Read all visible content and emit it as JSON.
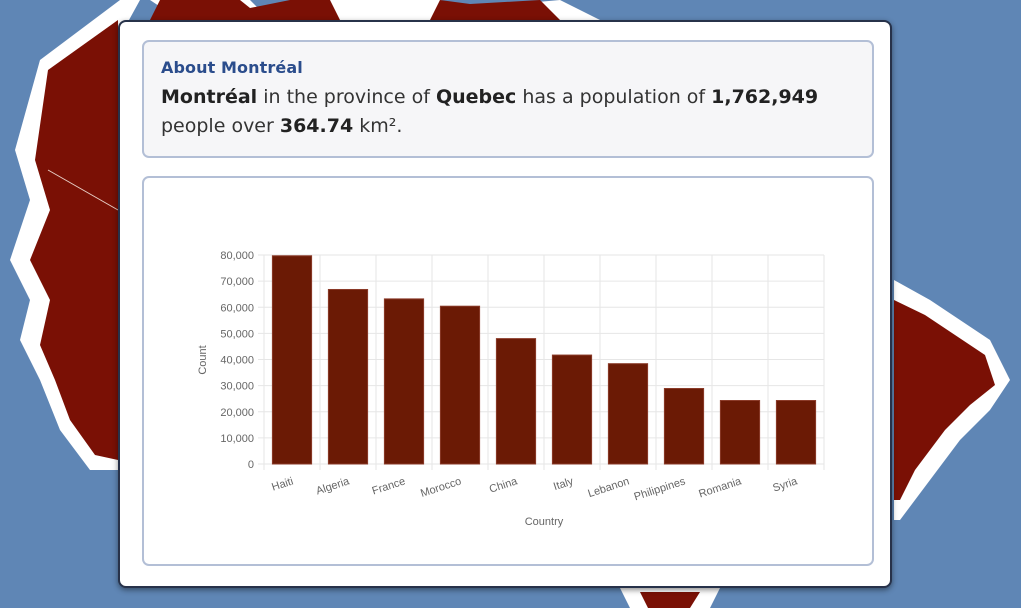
{
  "info": {
    "heading": "About Montréal",
    "city": "Montréal",
    "text_1": " in the province of ",
    "province": "Quebec",
    "text_2": " has a population of ",
    "population": "1,762,949",
    "text_3": " people over ",
    "area": "364.74",
    "text_4": " km².",
    "unit_sup": ""
  },
  "colors": {
    "bar_fill": "#6b1a05",
    "bar_stroke": "#8a3a28",
    "map_fill": "#7a1005",
    "background": "#5f86b5"
  },
  "chart_data": {
    "type": "bar",
    "title": "",
    "xlabel": "Country",
    "ylabel": "Count",
    "categories": [
      "Haiti",
      "Algeria",
      "France",
      "Morocco",
      "China",
      "Italy",
      "Lebanon",
      "Philippines",
      "Romania",
      "Syria"
    ],
    "values": [
      79700,
      66800,
      63200,
      60400,
      48000,
      41700,
      38400,
      28900,
      24300,
      24300
    ],
    "ylim": [
      0,
      80000
    ],
    "yticks": [
      0,
      10000,
      20000,
      30000,
      40000,
      50000,
      60000,
      70000,
      80000
    ],
    "ytick_labels": [
      "0",
      "10,000",
      "20,000",
      "30,000",
      "40,000",
      "50,000",
      "60,000",
      "70,000",
      "80,000"
    ],
    "grid": true,
    "legend": "none"
  }
}
